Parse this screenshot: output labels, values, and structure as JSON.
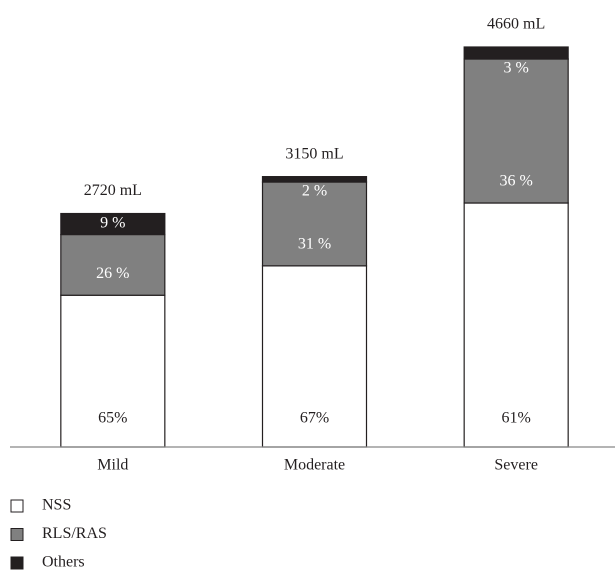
{
  "chart_data": {
    "type": "stacked_bar",
    "categories": [
      "Mild",
      "Moderate",
      "Severe"
    ],
    "series": [
      {
        "name": "NSS",
        "color": "#ffffff",
        "values": [
          65,
          67,
          61
        ],
        "value_labels": [
          "65%",
          "67%",
          "61%"
        ]
      },
      {
        "name": "RLS/RAS",
        "color": "#808080",
        "values": [
          26,
          31,
          36
        ],
        "value_labels": [
          "26 %",
          "31 %",
          "36 %"
        ]
      },
      {
        "name": "Others",
        "color": "#231f20",
        "values": [
          9,
          2,
          3
        ],
        "value_labels": [
          "9 %",
          "2 %",
          "3 %"
        ]
      }
    ],
    "totals": {
      "values": [
        2720,
        3150,
        4660
      ],
      "value_labels": [
        "2720 mL",
        "3150 mL",
        "4660 mL"
      ]
    }
  }
}
